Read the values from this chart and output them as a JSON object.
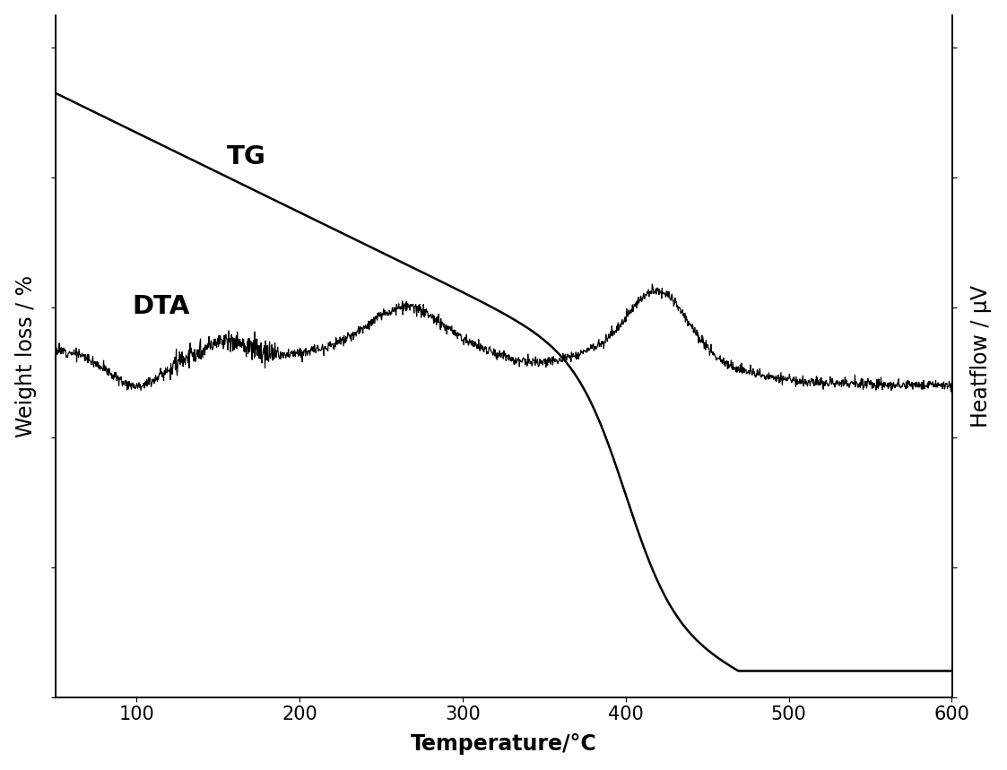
{
  "xlabel": "Temperature/°C",
  "ylabel_left": "Weight loss / %",
  "ylabel_right": "Heatflow / μV",
  "label_TG": "TG",
  "label_DTA": "DTA",
  "xmin": 50,
  "xmax": 600,
  "xticks": [
    100,
    200,
    300,
    400,
    500,
    600
  ],
  "line_color": "#000000",
  "background_color": "#ffffff",
  "label_fontsize": 17,
  "tick_fontsize": 15,
  "annotation_fontsize": 21
}
